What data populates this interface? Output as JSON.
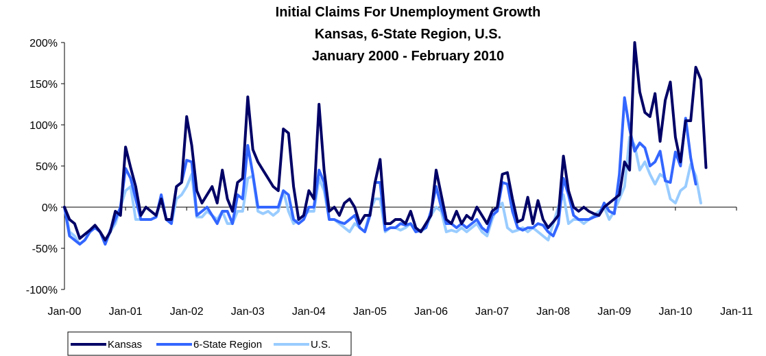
{
  "chart_data": {
    "type": "line",
    "title_lines": [
      "Initial Claims For Unemployment Growth",
      "Kansas, 6-State Region, U.S.",
      "January 2000 - February 2010"
    ],
    "xlabel": "",
    "ylabel": "",
    "ylim": [
      -100,
      200
    ],
    "y_ticks": [
      -100,
      -50,
      0,
      50,
      100,
      150,
      200
    ],
    "y_tick_labels": [
      "-100%",
      "-50%",
      "0%",
      "50%",
      "100%",
      "150%",
      "200%"
    ],
    "xlim": [
      "2000-01",
      "2011-01"
    ],
    "x_tick_labels": [
      "Jan-00",
      "Jan-01",
      "Jan-02",
      "Jan-03",
      "Jan-04",
      "Jan-05",
      "Jan-06",
      "Jan-07",
      "Jan-08",
      "Jan-09",
      "Jan-10",
      "Jan-11"
    ],
    "x_start": "2000-01",
    "grid": false,
    "legend_position": "bottom-left",
    "series": [
      {
        "name": "Kansas",
        "color": "#000066",
        "values": [
          0,
          -15,
          -20,
          -38,
          -33,
          -28,
          -22,
          -30,
          -40,
          -30,
          -5,
          -10,
          73,
          48,
          25,
          -10,
          0,
          -5,
          -10,
          10,
          -15,
          -15,
          25,
          30,
          110,
          75,
          20,
          5,
          15,
          25,
          5,
          45,
          10,
          -5,
          30,
          35,
          134,
          70,
          55,
          45,
          35,
          25,
          20,
          95,
          90,
          25,
          -15,
          -10,
          20,
          10,
          125,
          45,
          -5,
          0,
          -10,
          5,
          10,
          0,
          -20,
          -10,
          -10,
          30,
          58,
          -20,
          -20,
          -15,
          -15,
          -20,
          -5,
          -25,
          -30,
          -20,
          -10,
          45,
          15,
          -15,
          -20,
          -5,
          -20,
          -10,
          -15,
          0,
          -10,
          -20,
          -5,
          0,
          40,
          42,
          10,
          -18,
          -15,
          12,
          -20,
          8,
          -15,
          -25,
          -18,
          -10,
          62,
          20,
          0,
          -5,
          0,
          -5,
          -8,
          -10,
          0,
          5,
          10,
          15,
          55,
          45,
          200,
          140,
          115,
          110,
          138,
          80,
          130,
          152,
          85,
          55,
          105,
          105,
          170,
          155,
          48
        ]
      },
      {
        "name": "6-State Region",
        "color": "#3366ff",
        "values": [
          0,
          -35,
          -40,
          -45,
          -40,
          -30,
          -25,
          -30,
          -45,
          -28,
          -15,
          0,
          47,
          35,
          10,
          -15,
          -15,
          -15,
          -12,
          15,
          -15,
          -20,
          25,
          30,
          57,
          55,
          -10,
          -5,
          0,
          -10,
          -20,
          -5,
          -5,
          -20,
          15,
          10,
          75,
          40,
          0,
          0,
          0,
          0,
          0,
          20,
          15,
          -15,
          -20,
          -15,
          0,
          0,
          45,
          30,
          -15,
          -15,
          -18,
          -20,
          -15,
          -10,
          -25,
          -30,
          -10,
          30,
          30,
          -28,
          -25,
          -25,
          -20,
          -22,
          -20,
          -30,
          -28,
          -25,
          -5,
          25,
          0,
          -20,
          -20,
          -25,
          -20,
          -25,
          -20,
          -15,
          -25,
          -30,
          -10,
          -5,
          30,
          28,
          -5,
          -25,
          -28,
          -25,
          -25,
          -20,
          -22,
          -30,
          -35,
          -20,
          35,
          15,
          -10,
          -15,
          -15,
          -15,
          -12,
          -10,
          5,
          -5,
          -8,
          40,
          133,
          95,
          68,
          78,
          72,
          50,
          55,
          68,
          32,
          30,
          67,
          50,
          108,
          60,
          28
        ]
      },
      {
        "name": "U.S.",
        "color": "#99ccff",
        "values": [
          0,
          -30,
          -35,
          -45,
          -40,
          -30,
          -25,
          -30,
          -45,
          -30,
          -20,
          0,
          20,
          25,
          -15,
          -15,
          -15,
          -15,
          -12,
          10,
          -15,
          -20,
          10,
          15,
          25,
          40,
          -12,
          -12,
          -5,
          -10,
          -15,
          -5,
          -20,
          -20,
          -5,
          -5,
          35,
          38,
          -5,
          -8,
          -5,
          -10,
          -5,
          20,
          -5,
          -20,
          -15,
          -10,
          -5,
          -5,
          35,
          20,
          -15,
          -15,
          -20,
          -25,
          -30,
          -20,
          -25,
          -30,
          -5,
          10,
          10,
          -30,
          -25,
          -25,
          -28,
          -25,
          -20,
          -28,
          -30,
          -25,
          -10,
          0,
          -5,
          -30,
          -28,
          -30,
          -25,
          -30,
          -25,
          -20,
          -30,
          -35,
          -15,
          0,
          5,
          -25,
          -30,
          -28,
          -25,
          -30,
          -25,
          -30,
          -35,
          -40,
          -20,
          0,
          15,
          -20,
          -15,
          -15,
          -20,
          -15,
          -10,
          -5,
          0,
          -15,
          -5,
          10,
          25,
          85,
          75,
          45,
          55,
          40,
          28,
          40,
          35,
          10,
          5,
          20,
          25,
          52,
          38,
          5
        ]
      }
    ]
  }
}
